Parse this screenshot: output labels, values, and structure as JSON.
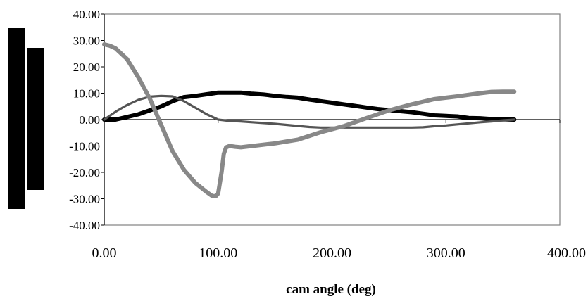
{
  "chart_data": {
    "type": "line",
    "title": "",
    "xlabel": "cam angle (deg)",
    "ylabel": "",
    "xlim": [
      0,
      400
    ],
    "ylim": [
      -40,
      40
    ],
    "x_ticks": [
      0,
      100,
      200,
      300,
      400
    ],
    "x_tick_labels": [
      "0.00",
      "100.00",
      "200.00",
      "300.00",
      "400.00"
    ],
    "y_ticks": [
      40,
      30,
      20,
      10,
      0,
      -10,
      -20,
      -30,
      -40
    ],
    "y_tick_labels": [
      "40.00",
      "30.00",
      "20.00",
      "10.00",
      "0.00",
      "-10.00",
      "-20.00",
      "-30.00",
      "-40.00"
    ],
    "grid": false,
    "legend": "none",
    "series": [
      {
        "color": "#000000",
        "x": [
          0,
          10,
          20,
          30,
          40,
          50,
          60,
          70,
          80,
          90,
          100,
          110,
          120,
          130,
          140,
          150,
          160,
          170,
          180,
          190,
          200,
          210,
          220,
          230,
          240,
          250,
          260,
          270,
          280,
          290,
          300,
          310,
          320,
          330,
          340,
          350,
          360
        ],
        "values": [
          0,
          0,
          1,
          2,
          3.5,
          5,
          7,
          8.5,
          9,
          9.6,
          10.2,
          10.2,
          10.2,
          9.8,
          9.5,
          9,
          8.6,
          8.3,
          7.6,
          7,
          6.4,
          5.8,
          5.2,
          4.6,
          4,
          3.6,
          3.2,
          2.8,
          2.2,
          1.6,
          1.4,
          1.2,
          0.6,
          0.5,
          0.2,
          0.1,
          0
        ]
      },
      {
        "color": "#555555",
        "x": [
          0,
          10,
          20,
          30,
          40,
          50,
          60,
          70,
          80,
          90,
          100,
          110,
          120,
          130,
          140,
          150,
          160,
          170,
          180,
          190,
          200,
          210,
          220,
          230,
          240,
          250,
          260,
          270,
          280,
          290,
          300,
          310,
          320,
          330,
          340,
          350,
          360
        ],
        "values": [
          0,
          3,
          5.5,
          7.5,
          8.7,
          9,
          8.8,
          7,
          4.5,
          2,
          0,
          -0.5,
          -0.7,
          -1,
          -1.3,
          -1.6,
          -2,
          -2.4,
          -2.8,
          -3,
          -3,
          -3,
          -3,
          -3,
          -3,
          -3,
          -3,
          -3,
          -2.9,
          -2.5,
          -2.2,
          -1.8,
          -1.4,
          -1,
          -0.7,
          -0.3,
          0
        ]
      },
      {
        "color": "#888888",
        "x": [
          0,
          5,
          10,
          20,
          30,
          40,
          50,
          60,
          70,
          80,
          90,
          95,
          98,
          100,
          103,
          105,
          107,
          110,
          115,
          120,
          130,
          150,
          170,
          190,
          210,
          230,
          250,
          270,
          290,
          310,
          330,
          340,
          350,
          360
        ],
        "values": [
          28.5,
          28,
          27,
          23,
          16,
          8,
          -2,
          -12,
          -19,
          -24,
          -27.5,
          -29,
          -29,
          -28,
          -20,
          -13,
          -10.5,
          -10,
          -10.3,
          -10.5,
          -10,
          -9,
          -7.6,
          -4.8,
          -2.5,
          0.5,
          3.5,
          5.8,
          7.8,
          8.8,
          10,
          10.5,
          10.6,
          10.6
        ]
      }
    ]
  }
}
